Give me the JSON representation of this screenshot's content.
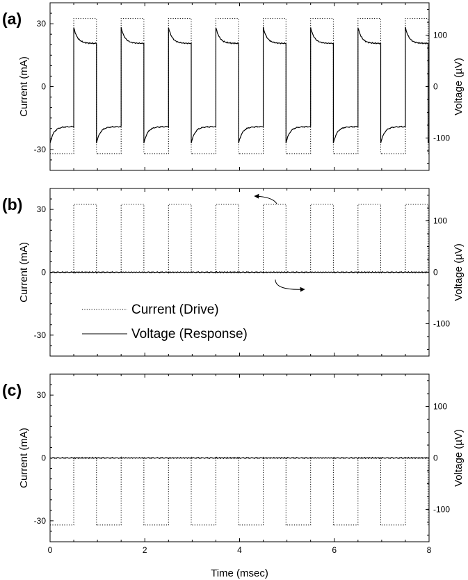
{
  "chart_data": {
    "type": "line",
    "xlabel": "Time (msec)",
    "xlim": [
      0,
      8
    ],
    "x_ticks": [
      0,
      2,
      4,
      6,
      8
    ],
    "x_tick_labels": [
      "0",
      "2",
      "4",
      "6",
      "8"
    ],
    "left_ylabel": "Current (mA)",
    "right_ylabel": "Voltage (µV)",
    "left_ylim": [
      -40,
      40
    ],
    "right_ylim": [
      -163,
      163
    ],
    "left_ticks": [
      -30,
      0,
      30
    ],
    "left_tick_labels": [
      "-30",
      "0",
      "30"
    ],
    "right_ticks": [
      -100,
      0,
      100
    ],
    "right_tick_labels": [
      "-100",
      "0",
      "100"
    ],
    "legend": {
      "placement": "lower-left",
      "panel": "b",
      "entries": [
        {
          "label": "Current (Drive)",
          "style": "dotted"
        },
        {
          "label": "Voltage (Response)",
          "style": "solid"
        }
      ]
    },
    "period_ms": 1.0,
    "panels": [
      {
        "tag": "(a)",
        "current": {
          "high": 32.5,
          "low": -32,
          "high_start_in_period": 0.5,
          "high_end_in_period": 0.98
        },
        "voltage": {
          "peak": 115,
          "plateau": 84,
          "trough": -110,
          "recovered": -78,
          "tau_ms": 0.08
        }
      },
      {
        "tag": "(b)",
        "current": {
          "high": 32.5,
          "low": 0,
          "high_start_in_period": 0.5,
          "high_end_in_period": 0.98
        },
        "voltage": {
          "peak": 0,
          "plateau": 0,
          "trough": 0,
          "recovered": 0,
          "tau_ms": 0.08
        }
      },
      {
        "tag": "(c)",
        "current": {
          "high": 0,
          "low": -32,
          "high_start_in_period": 0.5,
          "high_end_in_period": 0.98
        },
        "voltage": {
          "peak": 0,
          "plateau": 0,
          "trough": 0,
          "recovered": 0,
          "tau_ms": 0.08
        }
      }
    ]
  }
}
